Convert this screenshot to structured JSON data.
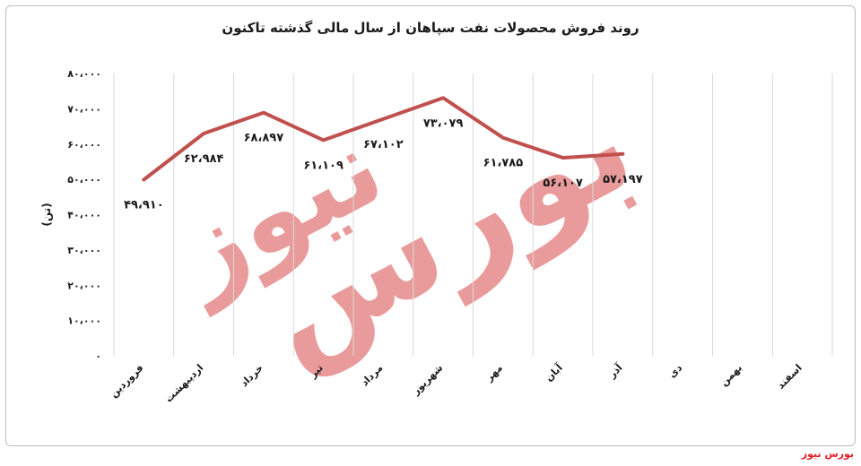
{
  "source": "بورس نیوز",
  "watermark": [
    "بورس",
    "نیوز"
  ],
  "colors": {
    "line": "#c0504d",
    "grid": "#d9d9d9",
    "text": "#1a1a1a",
    "source": "#e31b23"
  },
  "chart_data": {
    "type": "line",
    "title": "روند فروش محصولات نفت سپاهان از سال مالی گذشته تاکنون",
    "ylabel": "(تن)",
    "xlabel": "",
    "ylim": [
      0,
      80000
    ],
    "yticks": [
      0,
      10000,
      20000,
      30000,
      40000,
      50000,
      60000,
      70000,
      80000
    ],
    "ytick_labels": [
      "۰",
      "۱۰،۰۰۰",
      "۲۰،۰۰۰",
      "۳۰،۰۰۰",
      "۴۰،۰۰۰",
      "۵۰،۰۰۰",
      "۶۰،۰۰۰",
      "۷۰،۰۰۰",
      "۸۰،۰۰۰"
    ],
    "categories": [
      "فروردین",
      "اردیبهشت",
      "خرداد",
      "تیر",
      "مرداد",
      "شهریور",
      "مهر",
      "آبان",
      "آذر",
      "دی",
      "بهمن",
      "اسفند"
    ],
    "values": [
      49910,
      62984,
      68897,
      61109,
      67102,
      73079,
      61785,
      56107,
      57197,
      null,
      null,
      null
    ],
    "value_labels": [
      "۴۹،۹۱۰",
      "۶۲،۹۸۴",
      "۶۸،۸۹۷",
      "۶۱،۱۰۹",
      "۶۷،۱۰۲",
      "۷۳،۰۷۹",
      "۶۱،۷۸۵",
      "۵۶،۱۰۷",
      "۵۷،۱۹۷",
      null,
      null,
      null
    ],
    "grid": true,
    "legend": "none"
  }
}
